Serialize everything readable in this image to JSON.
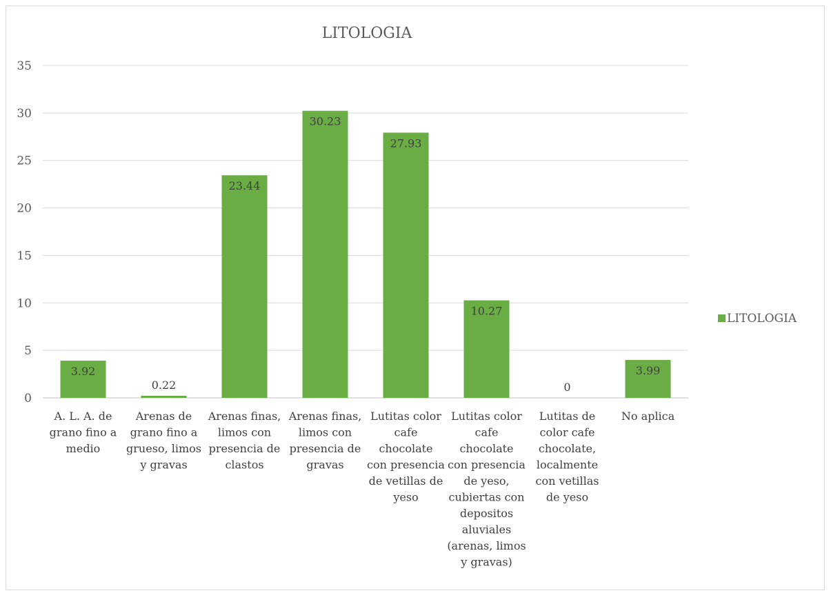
{
  "chart_data": {
    "type": "bar",
    "title": "LITOLOGIA",
    "xlabel": "",
    "ylabel": "",
    "ylim": [
      0,
      35
    ],
    "yticks": [
      0,
      5,
      10,
      15,
      20,
      25,
      30,
      35
    ],
    "grid": true,
    "legend_position": "right",
    "bar_color": "#6aad45",
    "categories": [
      [
        "A. L. A. de",
        "grano fino a",
        "medio"
      ],
      [
        "Arenas de",
        "grano fino a",
        "grueso, limos",
        "y gravas"
      ],
      [
        "Arenas finas,",
        "limos con",
        "presencia de",
        "clastos"
      ],
      [
        "Arenas finas,",
        "limos con",
        "presencia de",
        "gravas"
      ],
      [
        "Lutitas color",
        "cafe",
        "chocolate",
        "con presencia",
        "de vetillas de",
        "yeso"
      ],
      [
        "Lutitas color",
        "cafe",
        "chocolate",
        "con presencia",
        "de yeso,",
        "cubiertas con",
        "depositos",
        "aluviales",
        "(arenas, limos",
        "y gravas)"
      ],
      [
        "Lutitas de",
        "color cafe",
        "chocolate,",
        "localmente",
        "con vetillas",
        "de yeso"
      ],
      [
        "No aplica"
      ]
    ],
    "series": [
      {
        "name": "LITOLOGIA",
        "values": [
          3.92,
          0.22,
          23.44,
          30.23,
          27.93,
          10.27,
          0,
          3.99
        ],
        "labels": [
          "3.92",
          "0.22",
          "23.44",
          "30.23",
          "27.93",
          "10.27",
          "0",
          "3.99"
        ]
      }
    ]
  }
}
